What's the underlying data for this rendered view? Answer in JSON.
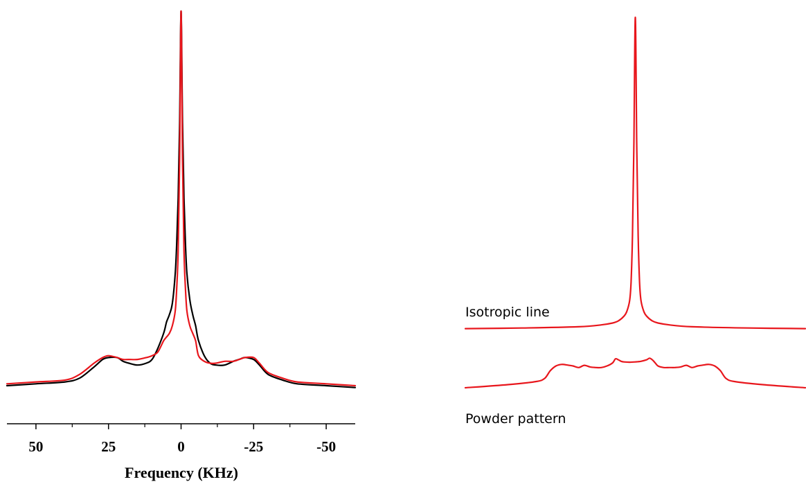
{
  "chart_data": [
    {
      "type": "line",
      "title": "",
      "xlabel": "Frequency (KHz)",
      "ylabel": "",
      "xlim": [
        60,
        -60
      ],
      "x_reversed": true,
      "ylim": [
        0,
        1
      ],
      "grid": false,
      "legend": "none",
      "x_ticks": [
        50,
        25,
        0,
        -25,
        -50
      ],
      "x_tick_labels": [
        "50",
        "25",
        "0",
        "-25",
        "-50"
      ],
      "x_minor_ticks": [
        37.5,
        12.5,
        -12.5,
        -37.5
      ],
      "series": [
        {
          "color": "#000000",
          "x": [
            60,
            50,
            40,
            35,
            30,
            27,
            25,
            22,
            20,
            18,
            15,
            12,
            10,
            8,
            6,
            5,
            4,
            3,
            2,
            1.5,
            1,
            0.5,
            0,
            -0.5,
            -1,
            -1.5,
            -2,
            -3,
            -4,
            -5,
            -6,
            -8,
            -10,
            -12,
            -15,
            -18,
            -20,
            -22,
            -25,
            -27,
            -30,
            -35,
            -40,
            -50,
            -60
          ],
          "y": [
            0.0,
            0.005,
            0.01,
            0.02,
            0.05,
            0.07,
            0.075,
            0.075,
            0.065,
            0.06,
            0.055,
            0.06,
            0.07,
            0.1,
            0.14,
            0.17,
            0.19,
            0.22,
            0.3,
            0.38,
            0.5,
            0.7,
            1.0,
            0.7,
            0.5,
            0.38,
            0.3,
            0.23,
            0.19,
            0.16,
            0.12,
            0.08,
            0.06,
            0.055,
            0.055,
            0.065,
            0.07,
            0.075,
            0.07,
            0.055,
            0.03,
            0.015,
            0.005,
            0.0,
            -0.005
          ]
        },
        {
          "color": "#e8161c",
          "x": [
            60,
            50,
            40,
            35,
            30,
            27,
            25,
            22,
            20,
            18,
            15,
            12,
            10,
            8,
            6,
            5,
            4,
            3,
            2,
            1.5,
            1,
            0.5,
            0,
            -0.5,
            -1,
            -1.5,
            -2,
            -3,
            -4,
            -5,
            -6,
            -8,
            -10,
            -12,
            -15,
            -18,
            -20,
            -22,
            -25,
            -27,
            -30,
            -35,
            -40,
            -50,
            -60
          ],
          "y": [
            0.005,
            0.01,
            0.015,
            0.03,
            0.06,
            0.075,
            0.08,
            0.075,
            0.07,
            0.07,
            0.07,
            0.075,
            0.08,
            0.09,
            0.12,
            0.13,
            0.14,
            0.16,
            0.2,
            0.26,
            0.36,
            0.6,
            1.0,
            0.6,
            0.36,
            0.26,
            0.2,
            0.16,
            0.14,
            0.12,
            0.08,
            0.065,
            0.06,
            0.06,
            0.065,
            0.065,
            0.07,
            0.075,
            0.075,
            0.06,
            0.035,
            0.02,
            0.01,
            0.005,
            0.0
          ]
        }
      ]
    },
    {
      "type": "line",
      "title": "",
      "xlabel": "",
      "ylabel": "",
      "xlim": [
        60,
        -60
      ],
      "x_reversed": true,
      "ylim": [
        -0.23,
        1
      ],
      "grid": false,
      "axes_visible": false,
      "annotations": [
        "Isotropic line",
        "Powder pattern"
      ],
      "series": [
        {
          "name": "Isotropic line",
          "color": "#e8161c",
          "x": [
            60,
            40,
            20,
            12,
            8,
            6,
            4,
            3,
            2,
            1.5,
            1,
            0.5,
            0,
            -0.5,
            -1,
            -1.5,
            -2,
            -3,
            -4,
            -6,
            -8,
            -12,
            -20,
            -40,
            -60
          ],
          "y": [
            0.0,
            0.002,
            0.006,
            0.012,
            0.018,
            0.025,
            0.04,
            0.055,
            0.09,
            0.15,
            0.3,
            0.6,
            1.0,
            0.6,
            0.3,
            0.15,
            0.09,
            0.055,
            0.04,
            0.025,
            0.018,
            0.012,
            0.006,
            0.002,
            0.0
          ]
        },
        {
          "name": "Powder pattern",
          "color": "#e8161c",
          "x": [
            60,
            45,
            35,
            32,
            30,
            28,
            26,
            24,
            22,
            20,
            18,
            16,
            14,
            12,
            10,
            8,
            7,
            6,
            5,
            4,
            2,
            0,
            -2,
            -4,
            -5,
            -6,
            -7,
            -8,
            -10,
            -12,
            -14,
            -16,
            -18,
            -20,
            -22,
            -24,
            -26,
            -28,
            -30,
            -32,
            -35,
            -45,
            -60
          ],
          "y": [
            -0.19,
            -0.18,
            -0.17,
            -0.16,
            -0.135,
            -0.12,
            -0.115,
            -0.117,
            -0.12,
            -0.125,
            -0.118,
            -0.123,
            -0.125,
            -0.125,
            -0.12,
            -0.11,
            -0.097,
            -0.1,
            -0.105,
            -0.107,
            -0.108,
            -0.107,
            -0.105,
            -0.1,
            -0.095,
            -0.1,
            -0.11,
            -0.12,
            -0.125,
            -0.125,
            -0.125,
            -0.123,
            -0.118,
            -0.125,
            -0.12,
            -0.117,
            -0.115,
            -0.12,
            -0.135,
            -0.16,
            -0.17,
            -0.18,
            -0.19
          ]
        }
      ]
    }
  ]
}
